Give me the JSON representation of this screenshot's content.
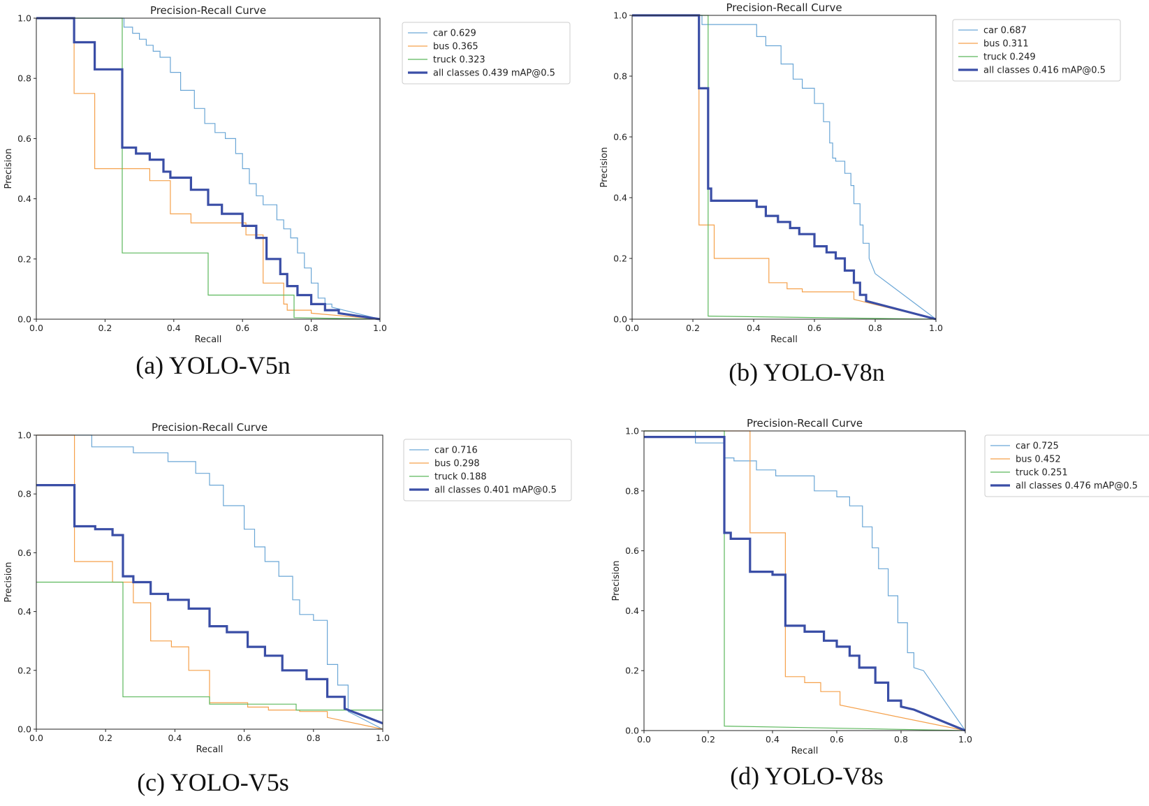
{
  "chart_data": [
    {
      "type": "line",
      "title": "Precision-Recall Curve",
      "xlabel": "Recall",
      "ylabel": "Precision",
      "xlim": [
        0,
        1
      ],
      "ylim": [
        0,
        1
      ],
      "xticks": [
        "0.0",
        "0.2",
        "0.4",
        "0.6",
        "0.8",
        "1.0"
      ],
      "yticks": [
        "0.0",
        "0.2",
        "0.4",
        "0.6",
        "0.8",
        "1.0"
      ],
      "caption": "(a) YOLO-V5n",
      "legend_position": "outside-right-top",
      "series": [
        {
          "name": "car 0.629",
          "color": "#6aa6d6",
          "width": 1.2,
          "x": [
            0,
            0.255,
            0.255,
            0.28,
            0.28,
            0.3,
            0.3,
            0.32,
            0.32,
            0.34,
            0.34,
            0.36,
            0.36,
            0.39,
            0.39,
            0.42,
            0.42,
            0.46,
            0.46,
            0.49,
            0.49,
            0.52,
            0.52,
            0.55,
            0.55,
            0.58,
            0.58,
            0.6,
            0.6,
            0.62,
            0.62,
            0.64,
            0.64,
            0.66,
            0.66,
            0.7,
            0.7,
            0.72,
            0.72,
            0.74,
            0.74,
            0.76,
            0.76,
            0.78,
            0.78,
            0.8,
            0.8,
            0.82,
            0.82,
            0.84,
            0.84,
            0.86,
            0.86,
            1.0
          ],
          "y": [
            1.0,
            1.0,
            0.97,
            0.97,
            0.95,
            0.95,
            0.93,
            0.93,
            0.91,
            0.91,
            0.89,
            0.89,
            0.87,
            0.87,
            0.82,
            0.82,
            0.76,
            0.76,
            0.7,
            0.7,
            0.65,
            0.65,
            0.62,
            0.62,
            0.6,
            0.6,
            0.55,
            0.55,
            0.5,
            0.5,
            0.45,
            0.45,
            0.41,
            0.41,
            0.38,
            0.38,
            0.33,
            0.33,
            0.3,
            0.3,
            0.27,
            0.27,
            0.22,
            0.22,
            0.17,
            0.17,
            0.12,
            0.12,
            0.07,
            0.07,
            0.05,
            0.05,
            0.04,
            0.0
          ]
        },
        {
          "name": "bus 0.365",
          "color": "#f5a04a",
          "width": 1.2,
          "x": [
            0,
            0.11,
            0.11,
            0.17,
            0.17,
            0.33,
            0.33,
            0.39,
            0.39,
            0.45,
            0.45,
            0.61,
            0.61,
            0.66,
            0.66,
            0.72,
            0.72,
            0.73,
            0.73,
            0.8,
            0.8,
            1.0
          ],
          "y": [
            1.0,
            1.0,
            0.75,
            0.75,
            0.5,
            0.5,
            0.46,
            0.46,
            0.35,
            0.35,
            0.32,
            0.32,
            0.28,
            0.28,
            0.12,
            0.12,
            0.05,
            0.05,
            0.03,
            0.03,
            0.02,
            0.0
          ]
        },
        {
          "name": "truck 0.323",
          "color": "#5cb85c",
          "width": 1.2,
          "x": [
            0,
            0.25,
            0.25,
            0.5,
            0.5,
            0.75,
            0.75,
            1.0
          ],
          "y": [
            1.0,
            1.0,
            0.22,
            0.22,
            0.08,
            0.08,
            0.005,
            0.0
          ]
        },
        {
          "name": "all classes 0.439 mAP@0.5",
          "color": "#3a4ea6",
          "width": 3.2,
          "x": [
            0,
            0.11,
            0.11,
            0.17,
            0.17,
            0.25,
            0.25,
            0.29,
            0.29,
            0.33,
            0.33,
            0.37,
            0.37,
            0.39,
            0.39,
            0.45,
            0.45,
            0.5,
            0.5,
            0.54,
            0.54,
            0.6,
            0.6,
            0.64,
            0.64,
            0.67,
            0.67,
            0.71,
            0.71,
            0.73,
            0.73,
            0.76,
            0.76,
            0.8,
            0.8,
            0.84,
            0.84,
            0.88,
            0.88,
            1.0
          ],
          "y": [
            1.0,
            1.0,
            0.92,
            0.92,
            0.83,
            0.83,
            0.57,
            0.57,
            0.55,
            0.55,
            0.53,
            0.53,
            0.49,
            0.49,
            0.47,
            0.47,
            0.43,
            0.43,
            0.38,
            0.38,
            0.35,
            0.35,
            0.31,
            0.31,
            0.27,
            0.27,
            0.2,
            0.2,
            0.15,
            0.15,
            0.11,
            0.11,
            0.08,
            0.08,
            0.05,
            0.05,
            0.03,
            0.03,
            0.02,
            0.0
          ]
        }
      ]
    },
    {
      "type": "line",
      "title": "Precision-Recall Curve",
      "xlabel": "Recall",
      "ylabel": "Precision",
      "xlim": [
        0,
        1
      ],
      "ylim": [
        0,
        1
      ],
      "xticks": [
        "0.0",
        "0.2",
        "0.4",
        "0.6",
        "0.8",
        "1.0"
      ],
      "yticks": [
        "0.0",
        "0.2",
        "0.4",
        "0.6",
        "0.8",
        "1.0"
      ],
      "caption": "(b) YOLO-V8n",
      "legend_position": "outside-right-top",
      "series": [
        {
          "name": "car 0.687",
          "color": "#6aa6d6",
          "width": 1.2,
          "x": [
            0,
            0.23,
            0.23,
            0.41,
            0.41,
            0.44,
            0.44,
            0.49,
            0.49,
            0.53,
            0.53,
            0.56,
            0.56,
            0.6,
            0.6,
            0.63,
            0.63,
            0.65,
            0.65,
            0.66,
            0.66,
            0.67,
            0.67,
            0.7,
            0.7,
            0.72,
            0.72,
            0.73,
            0.73,
            0.75,
            0.75,
            0.76,
            0.76,
            0.78,
            0.78,
            0.8,
            1.0
          ],
          "y": [
            1.0,
            1.0,
            0.97,
            0.97,
            0.93,
            0.93,
            0.9,
            0.9,
            0.84,
            0.84,
            0.79,
            0.79,
            0.76,
            0.76,
            0.71,
            0.71,
            0.65,
            0.65,
            0.58,
            0.58,
            0.53,
            0.53,
            0.52,
            0.52,
            0.48,
            0.48,
            0.44,
            0.44,
            0.38,
            0.38,
            0.31,
            0.31,
            0.25,
            0.25,
            0.2,
            0.15,
            0.0
          ]
        },
        {
          "name": "bus 0.311",
          "color": "#f5a04a",
          "width": 1.2,
          "x": [
            0,
            0.22,
            0.22,
            0.27,
            0.27,
            0.45,
            0.45,
            0.51,
            0.51,
            0.56,
            0.56,
            0.73,
            0.73,
            1.0
          ],
          "y": [
            1.0,
            1.0,
            0.31,
            0.31,
            0.2,
            0.2,
            0.12,
            0.12,
            0.1,
            0.1,
            0.09,
            0.09,
            0.065,
            0.0
          ]
        },
        {
          "name": "truck 0.249",
          "color": "#5cb85c",
          "width": 1.2,
          "x": [
            0,
            0.25,
            0.25,
            1.0
          ],
          "y": [
            1.0,
            1.0,
            0.01,
            0.0
          ]
        },
        {
          "name": "all classes 0.416 mAP@0.5",
          "color": "#3a4ea6",
          "width": 3.2,
          "x": [
            0,
            0.22,
            0.22,
            0.25,
            0.25,
            0.26,
            0.26,
            0.41,
            0.41,
            0.44,
            0.44,
            0.48,
            0.48,
            0.52,
            0.52,
            0.55,
            0.55,
            0.6,
            0.6,
            0.64,
            0.64,
            0.67,
            0.67,
            0.7,
            0.7,
            0.73,
            0.73,
            0.75,
            0.75,
            0.77,
            0.77,
            1.0
          ],
          "y": [
            1.0,
            1.0,
            0.76,
            0.76,
            0.43,
            0.43,
            0.39,
            0.39,
            0.37,
            0.37,
            0.34,
            0.34,
            0.32,
            0.32,
            0.3,
            0.3,
            0.28,
            0.28,
            0.24,
            0.24,
            0.22,
            0.22,
            0.2,
            0.2,
            0.16,
            0.16,
            0.12,
            0.12,
            0.08,
            0.08,
            0.06,
            0.0
          ]
        }
      ]
    },
    {
      "type": "line",
      "title": "Precision-Recall Curve",
      "xlabel": "Recall",
      "ylabel": "Precision",
      "xlim": [
        0,
        1
      ],
      "ylim": [
        0,
        1
      ],
      "xticks": [
        "0.0",
        "0.2",
        "0.4",
        "0.6",
        "0.8",
        "1.0"
      ],
      "yticks": [
        "0.0",
        "0.2",
        "0.4",
        "0.6",
        "0.8",
        "1.0"
      ],
      "caption": "(c) YOLO-V5s",
      "legend_position": "outside-right-top",
      "series": [
        {
          "name": "car 0.716",
          "color": "#6aa6d6",
          "width": 1.2,
          "x": [
            0,
            0.16,
            0.16,
            0.28,
            0.28,
            0.38,
            0.38,
            0.46,
            0.46,
            0.5,
            0.5,
            0.54,
            0.54,
            0.6,
            0.6,
            0.63,
            0.63,
            0.66,
            0.66,
            0.7,
            0.7,
            0.74,
            0.74,
            0.76,
            0.76,
            0.8,
            0.8,
            0.84,
            0.84,
            0.87,
            0.87,
            0.9,
            0.9,
            1.0
          ],
          "y": [
            1.0,
            1.0,
            0.96,
            0.96,
            0.94,
            0.94,
            0.91,
            0.91,
            0.87,
            0.87,
            0.83,
            0.83,
            0.76,
            0.76,
            0.68,
            0.68,
            0.62,
            0.62,
            0.57,
            0.57,
            0.52,
            0.52,
            0.44,
            0.44,
            0.39,
            0.39,
            0.37,
            0.37,
            0.22,
            0.22,
            0.15,
            0.15,
            0.06,
            0.0
          ]
        },
        {
          "name": "bus 0.298",
          "color": "#f5a04a",
          "width": 1.2,
          "x": [
            0,
            0.11,
            0.11,
            0.22,
            0.22,
            0.28,
            0.28,
            0.33,
            0.33,
            0.39,
            0.39,
            0.44,
            0.44,
            0.5,
            0.5,
            0.61,
            0.61,
            0.67,
            0.67,
            0.76,
            0.76,
            0.84,
            0.84,
            1.0
          ],
          "y": [
            1.0,
            1.0,
            0.57,
            0.57,
            0.5,
            0.5,
            0.43,
            0.43,
            0.3,
            0.3,
            0.28,
            0.28,
            0.2,
            0.2,
            0.09,
            0.09,
            0.075,
            0.075,
            0.065,
            0.065,
            0.06,
            0.06,
            0.04,
            0.0
          ]
        },
        {
          "name": "truck 0.188",
          "color": "#5cb85c",
          "width": 1.2,
          "x": [
            0,
            0.25,
            0.25,
            0.5,
            0.5,
            0.75,
            0.75,
            1.0
          ],
          "y": [
            0.5,
            0.5,
            0.11,
            0.11,
            0.085,
            0.085,
            0.065,
            0.065
          ]
        },
        {
          "name": "all classes 0.401 mAP@0.5",
          "color": "#3a4ea6",
          "width": 3.2,
          "x": [
            0,
            0.11,
            0.11,
            0.17,
            0.17,
            0.22,
            0.22,
            0.25,
            0.25,
            0.28,
            0.28,
            0.33,
            0.33,
            0.38,
            0.38,
            0.44,
            0.44,
            0.5,
            0.5,
            0.55,
            0.55,
            0.61,
            0.61,
            0.66,
            0.66,
            0.71,
            0.71,
            0.78,
            0.78,
            0.84,
            0.84,
            0.89,
            0.89,
            1.0
          ],
          "y": [
            0.83,
            0.83,
            0.69,
            0.69,
            0.68,
            0.68,
            0.66,
            0.66,
            0.52,
            0.52,
            0.5,
            0.5,
            0.46,
            0.46,
            0.44,
            0.44,
            0.41,
            0.41,
            0.35,
            0.35,
            0.33,
            0.33,
            0.28,
            0.28,
            0.25,
            0.25,
            0.2,
            0.2,
            0.17,
            0.17,
            0.11,
            0.11,
            0.07,
            0.02
          ]
        }
      ]
    },
    {
      "type": "line",
      "title": "Precision-Recall Curve",
      "xlabel": "Recall",
      "ylabel": "Precision",
      "xlim": [
        0,
        1
      ],
      "ylim": [
        0,
        1
      ],
      "xticks": [
        "0.0",
        "0.2",
        "0.4",
        "0.6",
        "0.8",
        "1.0"
      ],
      "yticks": [
        "0.0",
        "0.2",
        "0.4",
        "0.6",
        "0.8",
        "1.0"
      ],
      "caption": "(d) YOLO-V8s",
      "legend_position": "outside-right-top",
      "series": [
        {
          "name": "car 0.725",
          "color": "#6aa6d6",
          "width": 1.2,
          "x": [
            0,
            0.16,
            0.16,
            0.25,
            0.25,
            0.28,
            0.28,
            0.35,
            0.35,
            0.41,
            0.41,
            0.53,
            0.53,
            0.6,
            0.6,
            0.64,
            0.64,
            0.68,
            0.68,
            0.71,
            0.71,
            0.73,
            0.73,
            0.76,
            0.76,
            0.79,
            0.79,
            0.82,
            0.82,
            0.84,
            0.84,
            0.87,
            1.0
          ],
          "y": [
            1.0,
            1.0,
            0.96,
            0.96,
            0.91,
            0.91,
            0.9,
            0.9,
            0.87,
            0.87,
            0.85,
            0.85,
            0.8,
            0.8,
            0.78,
            0.78,
            0.75,
            0.75,
            0.68,
            0.68,
            0.61,
            0.61,
            0.54,
            0.54,
            0.45,
            0.45,
            0.36,
            0.36,
            0.26,
            0.26,
            0.21,
            0.2,
            0.0
          ]
        },
        {
          "name": "bus 0.452",
          "color": "#f5a04a",
          "width": 1.2,
          "x": [
            0,
            0.33,
            0.33,
            0.44,
            0.44,
            0.5,
            0.5,
            0.55,
            0.55,
            0.61,
            0.61,
            1.0
          ],
          "y": [
            1.0,
            1.0,
            0.66,
            0.66,
            0.18,
            0.18,
            0.16,
            0.16,
            0.13,
            0.13,
            0.085,
            0.0
          ]
        },
        {
          "name": "truck 0.251",
          "color": "#5cb85c",
          "width": 1.2,
          "x": [
            0,
            0.25,
            0.25,
            1.0
          ],
          "y": [
            1.0,
            1.0,
            0.015,
            0.0
          ]
        },
        {
          "name": "all classes 0.476 mAP@0.5",
          "color": "#3a4ea6",
          "width": 3.2,
          "x": [
            0,
            0.25,
            0.25,
            0.27,
            0.27,
            0.33,
            0.33,
            0.4,
            0.4,
            0.44,
            0.44,
            0.5,
            0.5,
            0.56,
            0.56,
            0.6,
            0.6,
            0.64,
            0.64,
            0.67,
            0.67,
            0.72,
            0.72,
            0.76,
            0.76,
            0.8,
            0.8,
            0.84,
            1.0
          ],
          "y": [
            0.98,
            0.98,
            0.66,
            0.66,
            0.64,
            0.64,
            0.53,
            0.53,
            0.52,
            0.52,
            0.35,
            0.35,
            0.33,
            0.33,
            0.3,
            0.3,
            0.28,
            0.28,
            0.25,
            0.25,
            0.21,
            0.21,
            0.16,
            0.16,
            0.1,
            0.1,
            0.08,
            0.07,
            0.0
          ]
        }
      ]
    }
  ]
}
